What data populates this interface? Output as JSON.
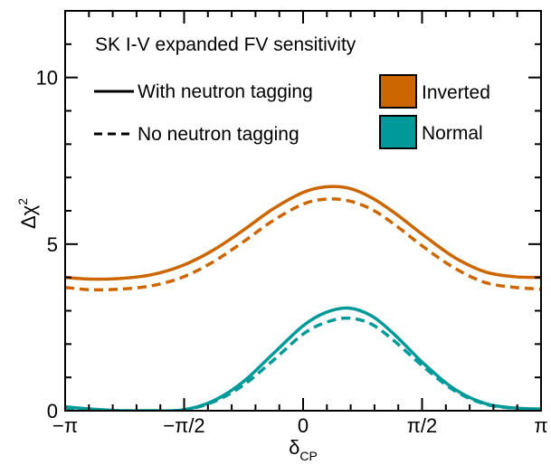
{
  "chart_data": {
    "type": "line",
    "title": "SK I-V expanded FV sensitivity",
    "xlabel": "δ",
    "xlabel_sub": "CP",
    "ylabel": "Δχ",
    "ylabel_sup": "2",
    "x_ticks": [
      {
        "value": -3.14159,
        "label": "−π"
      },
      {
        "value": -1.5708,
        "label": "−π/2"
      },
      {
        "value": 0,
        "label": "0"
      },
      {
        "value": 1.5708,
        "label": "π/2"
      },
      {
        "value": 3.14159,
        "label": "π"
      }
    ],
    "y_ticks": [
      {
        "value": 0,
        "label": "0"
      },
      {
        "value": 5,
        "label": "5"
      },
      {
        "value": 10,
        "label": "10"
      }
    ],
    "xlim": [
      -3.14159,
      3.14159
    ],
    "ylim": [
      0,
      12
    ],
    "grid": false,
    "legend": {
      "style_entries": [
        {
          "label": "With neutron tagging",
          "dash": "solid"
        },
        {
          "label": "No neutron tagging",
          "dash": "dashed"
        }
      ],
      "color_entries": [
        {
          "label": "Inverted",
          "color": "#cc6600"
        },
        {
          "label": "Normal",
          "color": "#009999"
        }
      ]
    },
    "series": [
      {
        "hierarchy": "Inverted",
        "tagging": "With neutron tagging",
        "color": "#cc6600",
        "dash": "solid",
        "x": [
          -3.14,
          -2.8,
          -2.4,
          -2.0,
          -1.6,
          -1.2,
          -0.8,
          -0.4,
          0,
          0.3,
          0.6,
          0.9,
          1.2,
          1.6,
          2.0,
          2.4,
          2.8,
          3.14
        ],
        "y": [
          4.0,
          3.95,
          3.97,
          4.08,
          4.35,
          4.8,
          5.4,
          6.05,
          6.55,
          6.72,
          6.68,
          6.4,
          5.95,
          5.25,
          4.6,
          4.17,
          4.02,
          4.0
        ]
      },
      {
        "hierarchy": "Inverted",
        "tagging": "No neutron tagging",
        "color": "#cc6600",
        "dash": "dashed",
        "x": [
          -3.14,
          -2.8,
          -2.4,
          -2.0,
          -1.6,
          -1.2,
          -0.8,
          -0.4,
          0,
          0.3,
          0.6,
          0.9,
          1.2,
          1.6,
          2.0,
          2.4,
          2.8,
          3.14
        ],
        "y": [
          3.7,
          3.63,
          3.65,
          3.75,
          4.0,
          4.45,
          5.05,
          5.7,
          6.2,
          6.35,
          6.3,
          6.05,
          5.6,
          4.9,
          4.28,
          3.85,
          3.7,
          3.65
        ]
      },
      {
        "hierarchy": "Normal",
        "tagging": "With neutron tagging",
        "color": "#009999",
        "dash": "solid",
        "x": [
          -3.14,
          -2.8,
          -2.4,
          -2.0,
          -1.6,
          -1.2,
          -0.8,
          -0.4,
          0,
          0.3,
          0.6,
          0.9,
          1.2,
          1.6,
          2.0,
          2.4,
          2.8,
          3.14
        ],
        "y": [
          0.12,
          0.05,
          0.0,
          0.0,
          0.02,
          0.28,
          0.85,
          1.7,
          2.55,
          2.95,
          3.08,
          2.85,
          2.3,
          1.4,
          0.65,
          0.22,
          0.08,
          0.05
        ]
      },
      {
        "hierarchy": "Normal",
        "tagging": "No neutron tagging",
        "color": "#009999",
        "dash": "dashed",
        "x": [
          -3.14,
          -2.8,
          -2.4,
          -2.0,
          -1.6,
          -1.2,
          -0.8,
          -0.4,
          0,
          0.3,
          0.6,
          0.9,
          1.2,
          1.6,
          2.0,
          2.4,
          2.8,
          3.14
        ],
        "y": [
          0.08,
          0.03,
          0.0,
          0.0,
          0.02,
          0.25,
          0.75,
          1.5,
          2.3,
          2.65,
          2.78,
          2.6,
          2.1,
          1.3,
          0.6,
          0.2,
          0.07,
          0.04
        ]
      }
    ]
  }
}
